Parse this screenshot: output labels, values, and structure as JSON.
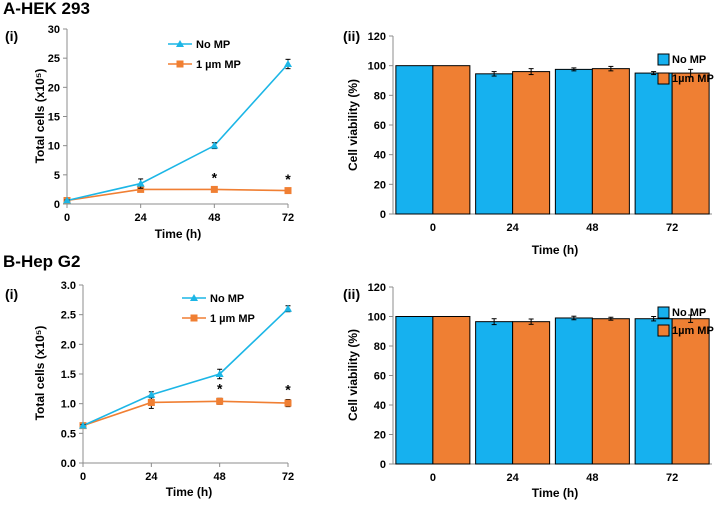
{
  "sections": [
    {
      "title": "A-HEK 293"
    },
    {
      "title": "B-Hep G2"
    }
  ],
  "chart_data": [
    {
      "id": "A-i",
      "type": "line",
      "panel_label": "(i)",
      "xlabel": "Time (h)",
      "ylabel": "Total cells (x10⁵)",
      "x": [
        0,
        24,
        48,
        72
      ],
      "xlim": [
        0,
        72
      ],
      "ylim": [
        0,
        30
      ],
      "yticks": [
        0,
        5,
        10,
        15,
        20,
        25,
        30
      ],
      "ytick_labels": [
        "0",
        "5",
        "10",
        "15",
        "20",
        "25",
        "30"
      ],
      "series": [
        {
          "name": "No MP",
          "color": "#1cb6e6",
          "marker": "triangle",
          "values": [
            0.6,
            3.5,
            10.0,
            24.0
          ],
          "errors": [
            0.1,
            0.8,
            0.5,
            0.8
          ]
        },
        {
          "name": "1 µm MP",
          "color": "#f07f33",
          "marker": "square",
          "values": [
            0.6,
            2.5,
            2.5,
            2.3
          ],
          "errors": [
            0.1,
            0.3,
            0.3,
            0.3
          ]
        }
      ],
      "annotations": [
        "*",
        "*"
      ],
      "annotation_x": [
        48,
        72
      ]
    },
    {
      "id": "A-ii",
      "type": "bar",
      "panel_label": "(ii)",
      "xlabel": "Time (h)",
      "ylabel": "Cell viability (%)",
      "categories": [
        "0",
        "24",
        "48",
        "72"
      ],
      "ylim": [
        0,
        120
      ],
      "yticks": [
        0,
        20,
        40,
        60,
        80,
        100,
        120
      ],
      "series": [
        {
          "name": "No MP",
          "color": "#16b1ef",
          "values": [
            100,
            94.5,
            97.5,
            95
          ],
          "errors": [
            0,
            1.5,
            1,
            1
          ]
        },
        {
          "name": "1µm MP",
          "color": "#ef7f33",
          "values": [
            100,
            96,
            98,
            95
          ],
          "errors": [
            0,
            2,
            1.5,
            2.5
          ]
        }
      ]
    },
    {
      "id": "B-i",
      "type": "line",
      "panel_label": "(i)",
      "xlabel": "Time (h)",
      "ylabel": "Total cells (x10⁵)",
      "x": [
        0,
        24,
        48,
        72
      ],
      "xlim": [
        0,
        72
      ],
      "ylim": [
        0,
        3.0
      ],
      "yticks": [
        0,
        0.5,
        1.0,
        1.5,
        2.0,
        2.5,
        3.0
      ],
      "ytick_labels": [
        "0.0",
        "0.5",
        "1.0",
        "1.5",
        "2.0",
        "2.5",
        "3.0"
      ],
      "series": [
        {
          "name": "No MP",
          "color": "#1cb6e6",
          "marker": "triangle",
          "values": [
            0.63,
            1.15,
            1.5,
            2.6
          ],
          "errors": [
            0.02,
            0.05,
            0.08,
            0.05
          ]
        },
        {
          "name": "1 µm MP",
          "color": "#f07f33",
          "marker": "square",
          "values": [
            0.63,
            1.02,
            1.04,
            1.01
          ],
          "errors": [
            0.02,
            0.1,
            0.05,
            0.06
          ]
        }
      ],
      "annotations": [
        "*",
        "*"
      ],
      "annotation_x": [
        48,
        72
      ]
    },
    {
      "id": "B-ii",
      "type": "bar",
      "panel_label": "(ii)",
      "xlabel": "Time (h)",
      "ylabel": "Cell viability (%)",
      "categories": [
        "0",
        "24",
        "48",
        "72"
      ],
      "ylim": [
        0,
        120
      ],
      "yticks": [
        0,
        20,
        40,
        60,
        80,
        100,
        120
      ],
      "series": [
        {
          "name": "No MP",
          "color": "#16b1ef",
          "values": [
            100,
            96.5,
            99,
            98.5
          ],
          "errors": [
            0,
            2,
            1.2,
            1.5
          ]
        },
        {
          "name": "1µm MP",
          "color": "#ef7f33",
          "values": [
            100,
            96.5,
            98.5,
            98.5
          ],
          "errors": [
            0,
            1.8,
            1,
            2.5
          ]
        }
      ]
    }
  ]
}
